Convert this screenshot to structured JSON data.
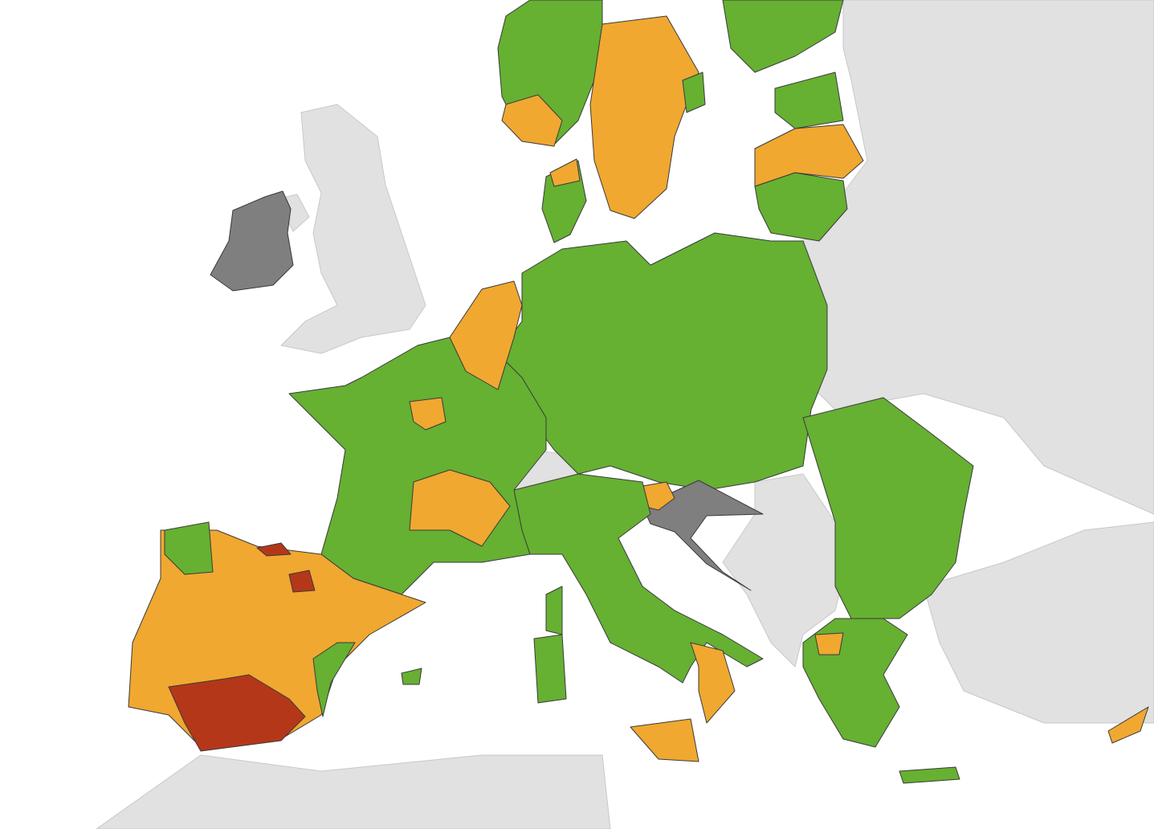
{
  "map": {
    "colors": {
      "sea": "#ffffff",
      "non_eu_land": "#e1e1e1",
      "green": "#66b032",
      "orange": "#f0a830",
      "red": "#b5371a",
      "grey": "#7f7f7f"
    }
  }
}
